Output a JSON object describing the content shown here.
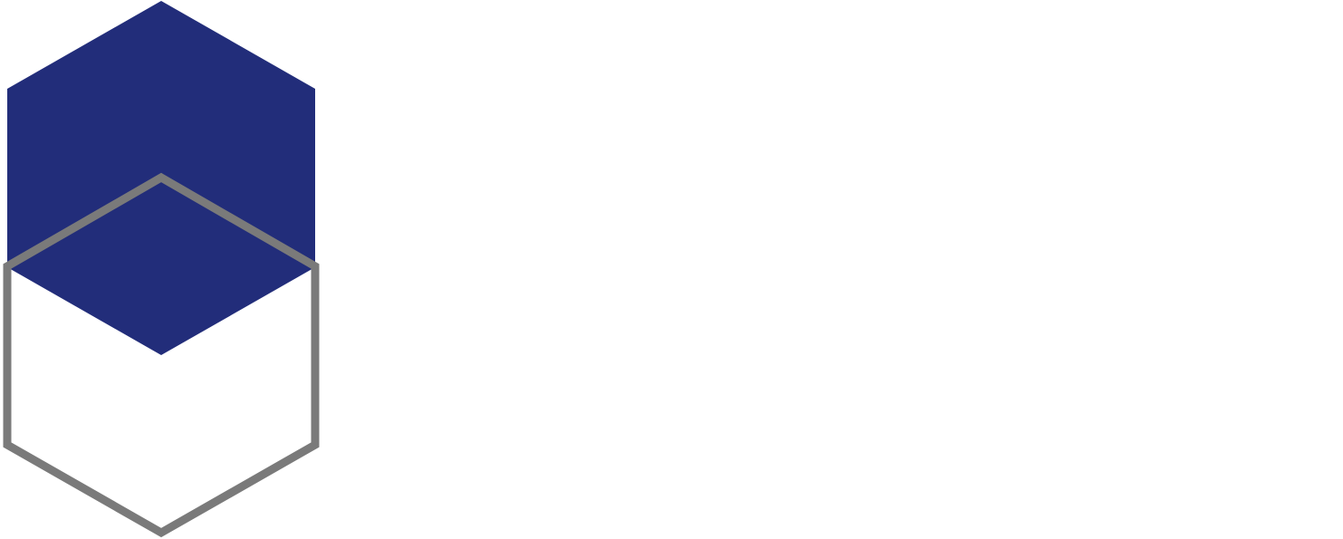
{
  "logo": {
    "colors": {
      "filled_hexagon": "#222d7a",
      "outline_hexagon": "#7a7a7a",
      "background": "#ffffff"
    }
  }
}
